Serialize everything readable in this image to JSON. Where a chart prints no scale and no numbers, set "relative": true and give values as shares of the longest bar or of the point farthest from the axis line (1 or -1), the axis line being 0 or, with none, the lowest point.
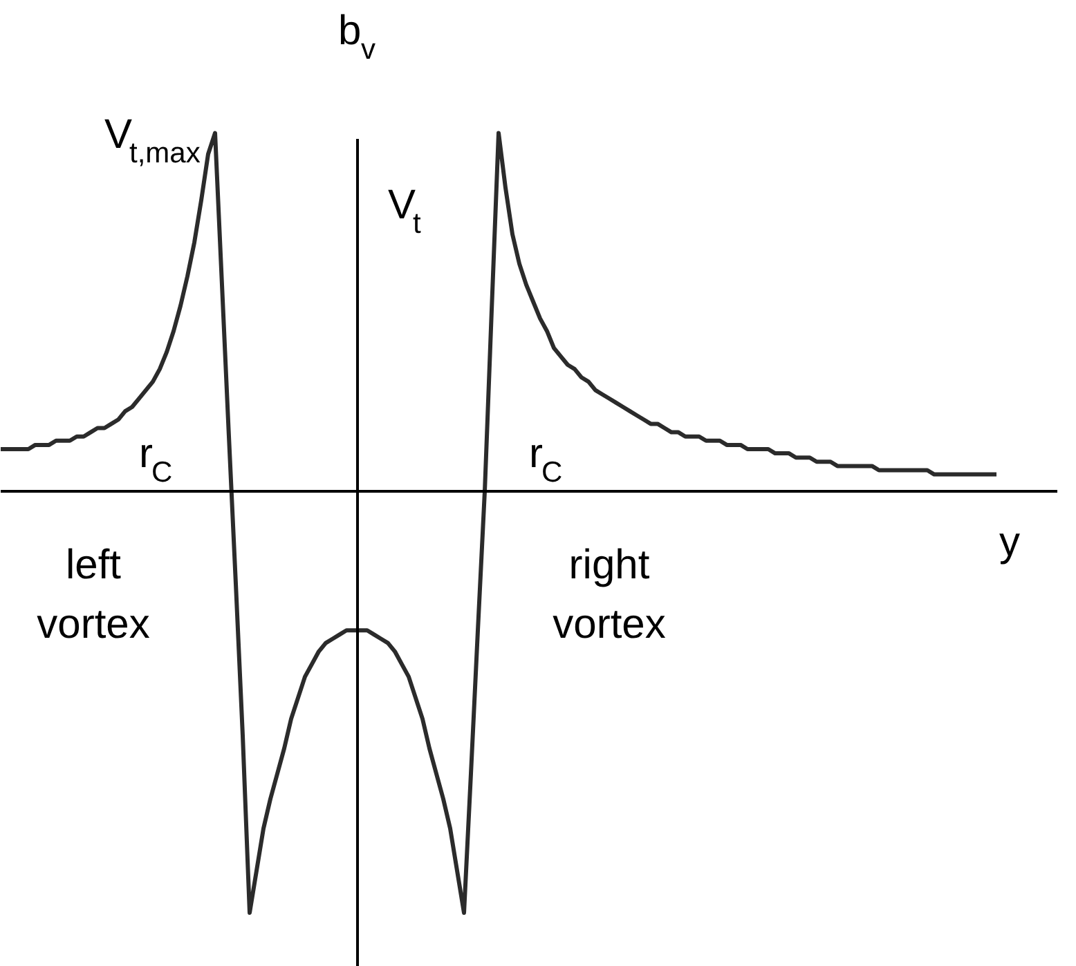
{
  "chart_data": {
    "type": "line",
    "relative": true,
    "line_style": "solid",
    "marker": "none",
    "xlabel": "y",
    "ylabel": "V$_{t}$",
    "annotations": [
      "V$_{t,max}$",
      "b$_{v}$",
      "r$_{C}$",
      "r$_{C}$",
      "left\nvortex",
      "right\nvortex"
    ],
    "categories": [
      null,
      null,
      null,
      null,
      null,
      null,
      null,
      null,
      null,
      null,
      null,
      null,
      null,
      null,
      null,
      null,
      null,
      null,
      null,
      null,
      null,
      null,
      null,
      null,
      null,
      null,
      null,
      null,
      null,
      null,
      null,
      null,
      null,
      null,
      null,
      null,
      null,
      null,
      null,
      null,
      null,
      null,
      null,
      null,
      null,
      null,
      null,
      null,
      null,
      null,
      null,
      null,
      null,
      null,
      null,
      null,
      null,
      null,
      null,
      null,
      null,
      null,
      null,
      null,
      null,
      null,
      null,
      null,
      null,
      null,
      null,
      null,
      null,
      null,
      null,
      null,
      null,
      null,
      null,
      null,
      null,
      null,
      null,
      null,
      null,
      null,
      null,
      null,
      null,
      null,
      null,
      null,
      null,
      null,
      null,
      null,
      null,
      null,
      null,
      null,
      null,
      null,
      null,
      null,
      null,
      null,
      null,
      null,
      null,
      null,
      null,
      null,
      null,
      null,
      null,
      null,
      null,
      null,
      null,
      null,
      null,
      null,
      null,
      null,
      null,
      null,
      null,
      null,
      null,
      null,
      null,
      null,
      null,
      null,
      null,
      null,
      null,
      null,
      null,
      null,
      null,
      null,
      null,
      null,
      null
    ],
    "series": [
      {
        "color": "#2b2b2b",
        "values": [
          0.1,
          0.1,
          0.1,
          0.1,
          0.1,
          0.11,
          0.11,
          0.11,
          0.12,
          0.12,
          0.12,
          0.13,
          0.13,
          0.14,
          0.15,
          0.15,
          0.16,
          0.17,
          0.19,
          0.2,
          0.22,
          0.24,
          0.26,
          0.29,
          0.33,
          0.38,
          0.44,
          0.51,
          0.59,
          0.69,
          0.8,
          0.85,
          0.49,
          0.13,
          -0.22,
          -0.58,
          -1,
          -0.9,
          -0.8,
          -0.73,
          -0.67,
          -0.61,
          -0.54,
          -0.49,
          -0.44,
          -0.41,
          -0.38,
          -0.36,
          -0.35,
          -0.34,
          -0.33,
          -0.33,
          -0.33,
          -0.33,
          -0.34,
          -0.35,
          -0.36,
          -0.38,
          -0.41,
          -0.44,
          -0.49,
          -0.54,
          -0.61,
          -0.67,
          -0.73,
          -0.8,
          -0.9,
          -1,
          -0.67,
          -0.33,
          0,
          0.43,
          0.85,
          0.72,
          0.61,
          0.54,
          0.49,
          0.45,
          0.41,
          0.38,
          0.34,
          0.32,
          0.3,
          0.29,
          0.27,
          0.26,
          0.24,
          0.23,
          0.22,
          0.21,
          0.2,
          0.19,
          0.18,
          0.17,
          0.16,
          0.16,
          0.15,
          0.14,
          0.14,
          0.13,
          0.13,
          0.13,
          0.12,
          0.12,
          0.12,
          0.11,
          0.11,
          0.11,
          0.1,
          0.1,
          0.1,
          0.1,
          0.09,
          0.09,
          0.09,
          0.08,
          0.08,
          0.08,
          0.07,
          0.07,
          0.07,
          0.06,
          0.06,
          0.06,
          0.06,
          0.06,
          0.06,
          0.05,
          0.05,
          0.05,
          0.05,
          0.05,
          0.05,
          0.05,
          0.05,
          0.04,
          0.04,
          0.04,
          0.04,
          0.04,
          0.04,
          0.04,
          0.04,
          0.04,
          0.04
        ]
      }
    ]
  }
}
